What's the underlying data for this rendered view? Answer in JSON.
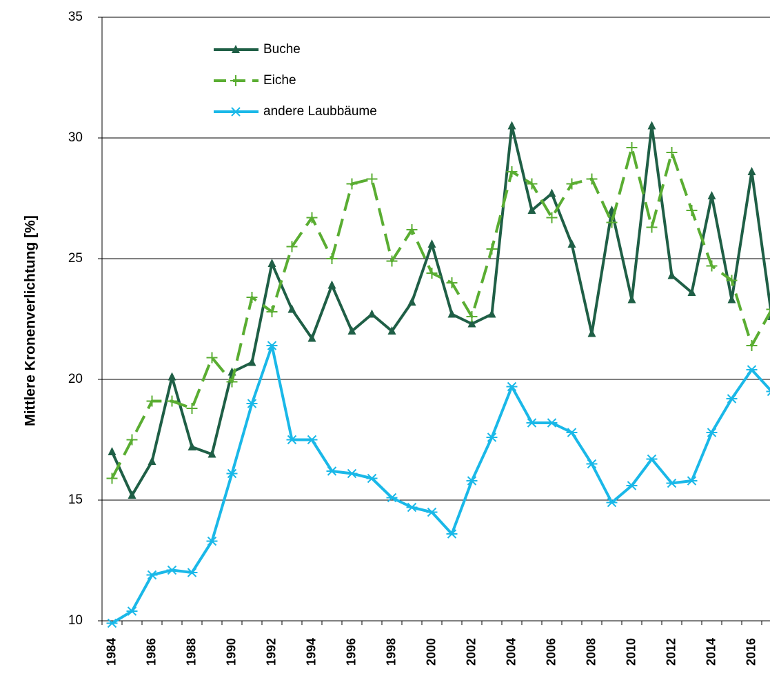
{
  "chart_data": {
    "type": "line",
    "y_label": "Mittlere Kronenverlichtung [%]",
    "categories": [
      "1984",
      null,
      "1986",
      null,
      "1988",
      null,
      "1990",
      null,
      "1992",
      null,
      "1994",
      null,
      "1996",
      null,
      "1998",
      null,
      "2000",
      null,
      "2002",
      null,
      "2004",
      null,
      "2006",
      null,
      "2008",
      null,
      "2010",
      null,
      "2012",
      null,
      "2014",
      null,
      "2016",
      null
    ],
    "series": [
      {
        "name": "Buche",
        "color": "#1f5f46",
        "dash": false,
        "marker": "triangle",
        "values": [
          17.0,
          15.2,
          16.6,
          20.1,
          17.2,
          16.9,
          20.3,
          20.7,
          24.8,
          22.9,
          21.7,
          23.9,
          22.0,
          22.7,
          22.0,
          23.2,
          25.6,
          22.7,
          22.3,
          22.7,
          30.5,
          27.0,
          27.7,
          25.6,
          21.9,
          27.0,
          23.3,
          30.5,
          24.3,
          23.6,
          27.6,
          23.3,
          28.6,
          22.6
        ]
      },
      {
        "name": "Eiche",
        "color": "#5aad32",
        "dash": true,
        "marker": "plus",
        "values": [
          15.9,
          17.5,
          19.1,
          19.1,
          18.8,
          20.9,
          19.9,
          23.4,
          22.8,
          25.5,
          26.7,
          25.0,
          28.1,
          28.3,
          24.9,
          26.2,
          24.4,
          24.0,
          22.6,
          25.4,
          28.6,
          28.1,
          26.7,
          28.1,
          28.3,
          26.5,
          29.6,
          26.3,
          29.4,
          27.0,
          24.7,
          24.1,
          21.4,
          22.9
        ]
      },
      {
        "name": "andere Laubbäume",
        "color": "#1ab8e8",
        "dash": false,
        "marker": "star",
        "values": [
          9.9,
          10.4,
          11.9,
          12.1,
          12.0,
          13.3,
          16.1,
          19.0,
          21.4,
          17.5,
          17.5,
          16.2,
          16.1,
          15.9,
          15.1,
          14.7,
          14.5,
          13.6,
          15.8,
          17.6,
          19.7,
          18.2,
          18.2,
          17.8,
          16.5,
          14.9,
          15.6,
          16.7,
          15.7,
          15.8,
          17.8,
          19.2,
          20.4,
          19.5
        ]
      }
    ],
    "ylim": [
      10,
      35
    ],
    "yticks": [
      10,
      15,
      20,
      25,
      30,
      35
    ],
    "grid": true
  }
}
